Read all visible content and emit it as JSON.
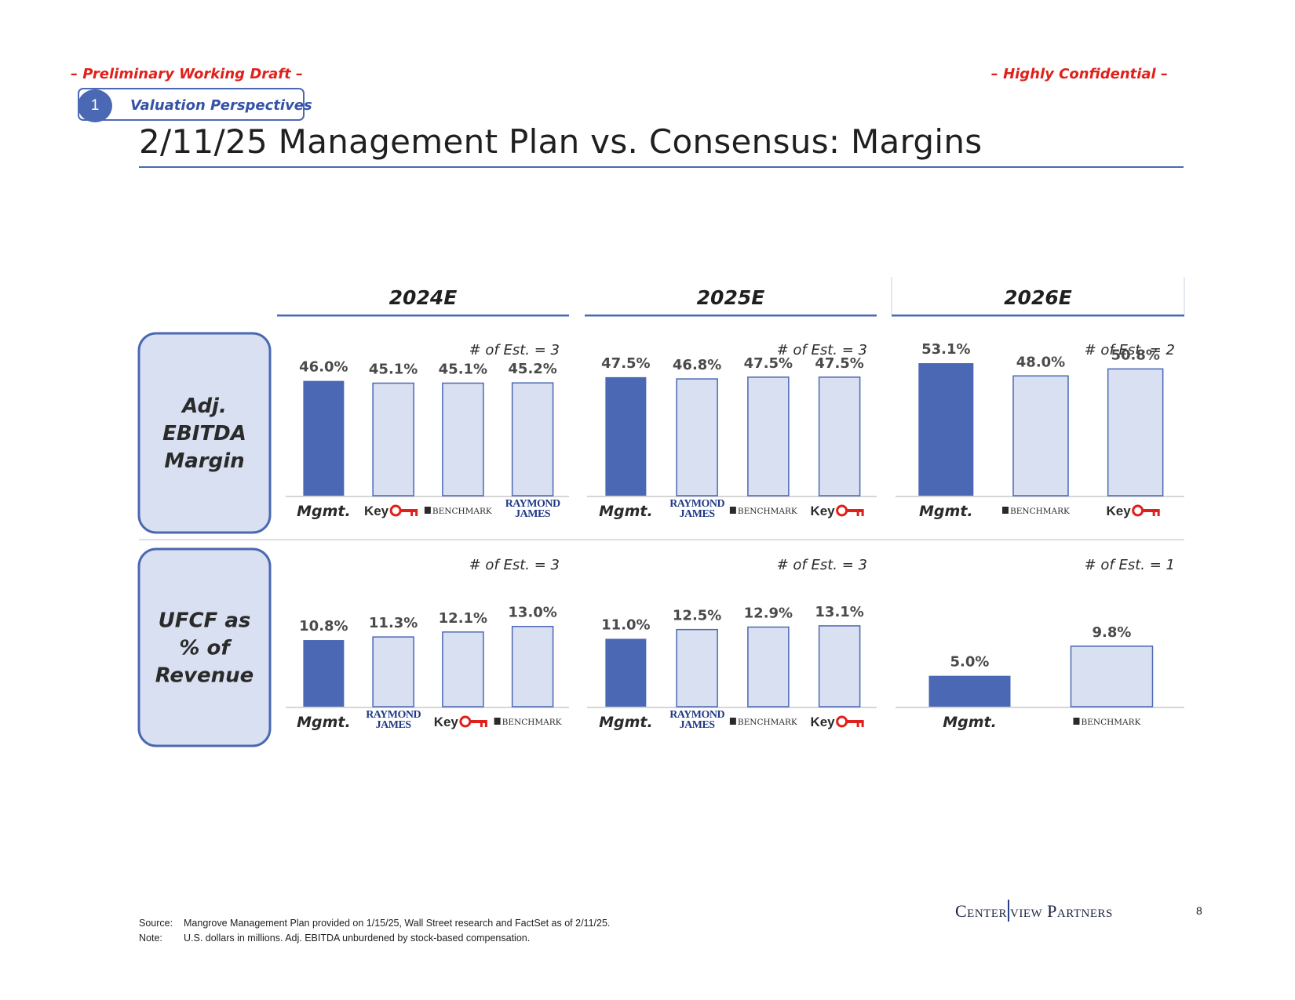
{
  "header": {
    "draft_label": "– Preliminary Working Draft –",
    "confidential_label": "– Highly Confidential –",
    "section_number": "1",
    "section_label": "Valuation Perspectives",
    "title": "2/11/25 Management Plan vs. Consensus: Margins"
  },
  "colors": {
    "accent": "#4a68b3",
    "mgmt_bar": "#4a68b3",
    "consensus_bar": "#d9e0f1",
    "row_label_fill": "#d9e0f1",
    "red": "#e0201a",
    "key_red": "#e0201a",
    "raymond_blue": "#1f3a85"
  },
  "chart_data": {
    "type": "bar",
    "columns": [
      "2024E",
      "2025E",
      "2026E"
    ],
    "rows": [
      {
        "label_lines": [
          "Adj.",
          "EBITDA",
          "Margin"
        ],
        "panels": [
          {
            "year": "2024E",
            "estimates_label": "# of Est. = 3",
            "ylim": [
              0,
              55
            ],
            "bars": [
              {
                "source": "Mgmt.",
                "value": 46.0,
                "label": "46.0%"
              },
              {
                "source": "Key",
                "value": 45.1,
                "label": "45.1%"
              },
              {
                "source": "BENCHMARK",
                "value": 45.1,
                "label": "45.1%"
              },
              {
                "source": "RAYMOND JAMES",
                "value": 45.2,
                "label": "45.2%"
              }
            ]
          },
          {
            "year": "2025E",
            "estimates_label": "# of Est. = 3",
            "ylim": [
              0,
              55
            ],
            "bars": [
              {
                "source": "Mgmt.",
                "value": 47.5,
                "label": "47.5%"
              },
              {
                "source": "RAYMOND JAMES",
                "value": 46.8,
                "label": "46.8%"
              },
              {
                "source": "BENCHMARK",
                "value": 47.5,
                "label": "47.5%"
              },
              {
                "source": "Key",
                "value": 47.5,
                "label": "47.5%"
              }
            ]
          },
          {
            "year": "2026E",
            "estimates_label": "# of Est. = 2",
            "ylim": [
              0,
              55
            ],
            "bars": [
              {
                "source": "Mgmt.",
                "value": 53.1,
                "label": "53.1%"
              },
              {
                "source": "BENCHMARK",
                "value": 48.0,
                "label": "48.0%"
              },
              {
                "source": "Key",
                "value": 50.8,
                "label": "50.8%"
              }
            ]
          }
        ]
      },
      {
        "label_lines": [
          "UFCF as",
          "% of",
          "Revenue"
        ],
        "panels": [
          {
            "year": "2024E",
            "estimates_label": "# of Est. = 3",
            "ylim": [
              0,
              15
            ],
            "bars": [
              {
                "source": "Mgmt.",
                "value": 10.8,
                "label": "10.8%"
              },
              {
                "source": "RAYMOND JAMES",
                "value": 11.3,
                "label": "11.3%"
              },
              {
                "source": "Key",
                "value": 12.1,
                "label": "12.1%"
              },
              {
                "source": "BENCHMARK",
                "value": 13.0,
                "label": "13.0%"
              }
            ]
          },
          {
            "year": "2025E",
            "estimates_label": "# of Est. = 3",
            "ylim": [
              0,
              15
            ],
            "bars": [
              {
                "source": "Mgmt.",
                "value": 11.0,
                "label": "11.0%"
              },
              {
                "source": "RAYMOND JAMES",
                "value": 12.5,
                "label": "12.5%"
              },
              {
                "source": "BENCHMARK",
                "value": 12.9,
                "label": "12.9%"
              },
              {
                "source": "Key",
                "value": 13.1,
                "label": "13.1%"
              }
            ]
          },
          {
            "year": "2026E",
            "estimates_label": "# of Est. = 1",
            "ylim": [
              0,
              15
            ],
            "bars": [
              {
                "source": "Mgmt.",
                "value": 5.0,
                "label": "5.0%"
              },
              {
                "source": "BENCHMARK",
                "value": 9.8,
                "label": "9.8%"
              }
            ]
          }
        ]
      }
    ]
  },
  "footer": {
    "source_key": "Source:",
    "source_text": "Mangrove Management Plan provided on 1/15/25, Wall Street research and FactSet as of 2/11/25.",
    "note_key": "Note:",
    "note_text": "U.S. dollars in millions. Adj. EBITDA unburdened by stock-based compensation.",
    "logo_left": "Center",
    "logo_right": "view Partners",
    "page_number": "8"
  }
}
